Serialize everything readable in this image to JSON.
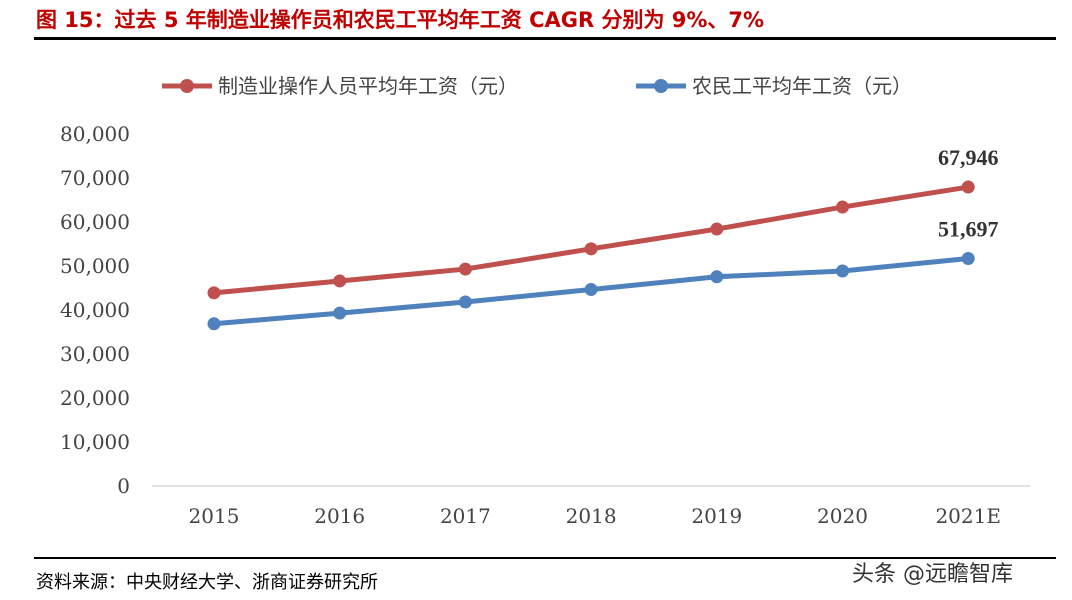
{
  "title": "图 15：过去 5 年制造业操作员和农民工平均年工资 CAGR 分别为 9%、7%",
  "source": "资料来源：中央财经大学、浙商证券研究所",
  "watermark": "头条 @远瞻智库",
  "chart_data": {
    "type": "line",
    "categories": [
      "2015",
      "2016",
      "2017",
      "2018",
      "2019",
      "2020",
      "2021E"
    ],
    "ylim": [
      0,
      80000
    ],
    "yticks": [
      "0",
      "10,000",
      "20,000",
      "30,000",
      "40,000",
      "50,000",
      "60,000",
      "70,000",
      "80,000"
    ],
    "grid": false,
    "legend_position": "top",
    "series": [
      {
        "name": "制造业操作人员平均年工资（元）",
        "color": "#c0504d",
        "values": [
          43900,
          46600,
          49300,
          53900,
          58400,
          63400,
          67946
        ],
        "end_label": "67,946"
      },
      {
        "name": "农民工平均年工资（元）",
        "color": "#4f81bd",
        "values": [
          36864,
          39300,
          41820,
          44652,
          47544,
          48864,
          51697
        ],
        "end_label": "51,697"
      }
    ]
  }
}
